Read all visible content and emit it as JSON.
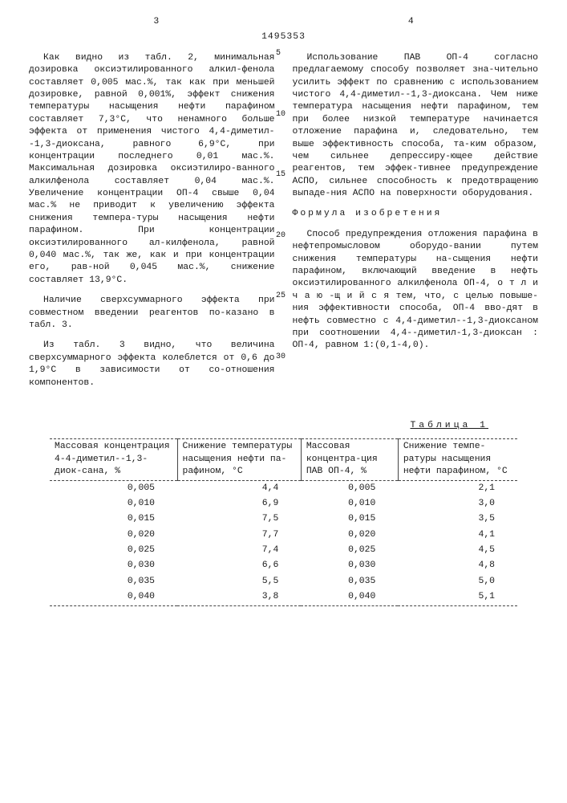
{
  "header": {
    "page_left": "3",
    "page_right": "4",
    "doc_number": "1495353"
  },
  "line_numbers": [
    "5",
    "10",
    "15",
    "20",
    "25",
    "30"
  ],
  "left_col": {
    "p1": "Как видно из табл. 2, минимальная дозировка оксиэтилированного алкил-фенола составляет 0,005 мас.%, так как при меньшей дозировке, равной 0,001%, эффект снижения температуры насыщения нефти парафином составляет 7,3°С, что ненамного больше эффекта от применения чистого 4,4-диметил--1,3-диоксана, равного 6,9°С, при концентрации последнего 0,01 мас.%. Максимальная дозировка оксиэтилиро-ванного алкилфенола составляет 0,04 мас.%. Увеличение концентрации ОП-4 свыше 0,04 мас.% не приводит к увеличению эффекта снижения темпера-туры насыщения нефти парафином. При концентрации оксиэтилированного ал-килфенола, равной 0,040 мас.%, так же, как и при концентрации его, рав-ной 0,045 мас.%, снижение составляет 13,9°С.",
    "p2": "Наличие сверхсуммарного эффекта при совместном введении реагентов по-казано в табл. 3.",
    "p3": "Из табл. 3 видно, что величина сверхсуммарного эффекта колеблется от 0,6 до 1,9°С в зависимости от со-отношения компонентов."
  },
  "right_col": {
    "p1": "Использование ПАВ ОП-4 согласно предлагаемому способу позволяет зна-чительно усилить эффект по сравнению с использованием чистого 4,4-диметил--1,3-диоксана. Чем ниже температура насыщения нефти парафином, тем при более низкой температуре начинается отложение парафина и, следовательно, тем выше эффективность способа, та-ким образом, чем сильнее депрессиру-ющее действие реагентов, тем эффек-тивнее предупреждение АСПО, сильнее способность к предотвращению выпаде-ния АСПО на поверхности оборудования.",
    "h1": "Формула изобретения",
    "p2": "Способ предупреждения отложения парафина в нефтепромысловом оборудо-вании путем снижения температуры на-сыщения нефти парафином, включающий введение в нефть оксиэтилированного алкилфенола ОП-4,  о т л и ч а ю -щ и й с я   тем, что, с целью повыше-ния эффективности способа, ОП-4 вво-дят в нефть совместно с 4,4-диметил--1,3-диоксаном при соотношении 4,4--диметил-1,3-диоксан : ОП-4, равном 1:(0,1-4,0)."
  },
  "table1": {
    "caption": "Таблица 1",
    "headers": [
      "Массовая концентрация 4-4-диметил--1,3-диок-сана, %",
      "Снижение температуры насыщения нефти па-рафином, °С",
      "Массовая концентра-ция ПАВ ОП-4, %",
      "Снижение темпе-ратуры насыщения нефти парафином, °С"
    ],
    "rows": [
      [
        "0,005",
        "4,4",
        "0,005",
        "2,1"
      ],
      [
        "0,010",
        "6,9",
        "0,010",
        "3,0"
      ],
      [
        "0,015",
        "7,5",
        "0,015",
        "3,5"
      ],
      [
        "0,020",
        "7,7",
        "0,020",
        "4,1"
      ],
      [
        "0,025",
        "7,4",
        "0,025",
        "4,5"
      ],
      [
        "0,030",
        "6,6",
        "0,030",
        "4,8"
      ],
      [
        "0,035",
        "5,5",
        "0,035",
        "5,0"
      ],
      [
        "0,040",
        "3,8",
        "0,040",
        "5,1"
      ]
    ]
  }
}
